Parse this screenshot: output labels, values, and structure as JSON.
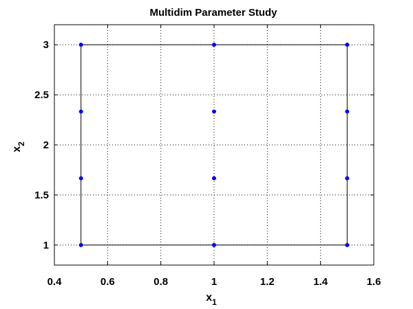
{
  "chart_data": {
    "type": "scatter",
    "title": "Multidim Parameter Study",
    "xlabel": {
      "base": "x",
      "sub": "1"
    },
    "ylabel": {
      "base": "x",
      "sub": "2"
    },
    "xlim": [
      0.4,
      1.6
    ],
    "ylim": [
      0.8,
      3.2
    ],
    "xticks": [
      0.4,
      0.6,
      0.8,
      1,
      1.2,
      1.4,
      1.6
    ],
    "yticks": [
      1,
      1.5,
      2,
      2.5,
      3
    ],
    "xtick_labels": [
      "0.4",
      "0.6",
      "0.8",
      "1",
      "1.2",
      "1.4",
      "1.6"
    ],
    "ytick_labels": [
      "1",
      "1.5",
      "2",
      "2.5",
      "3"
    ],
    "grid": "dotted",
    "marker_color": "#0000ff",
    "line_color": "#000000",
    "bounding_box": {
      "x": [
        0.5,
        1.5
      ],
      "y": [
        1,
        3
      ]
    },
    "points": [
      {
        "x": 0.5,
        "y": 1
      },
      {
        "x": 0.5,
        "y": 1.667
      },
      {
        "x": 0.5,
        "y": 2.333
      },
      {
        "x": 0.5,
        "y": 3
      },
      {
        "x": 1.0,
        "y": 1
      },
      {
        "x": 1.0,
        "y": 1.667
      },
      {
        "x": 1.0,
        "y": 2.333
      },
      {
        "x": 1.0,
        "y": 3
      },
      {
        "x": 1.5,
        "y": 1
      },
      {
        "x": 1.5,
        "y": 1.667
      },
      {
        "x": 1.5,
        "y": 2.333
      },
      {
        "x": 1.5,
        "y": 3
      }
    ]
  }
}
